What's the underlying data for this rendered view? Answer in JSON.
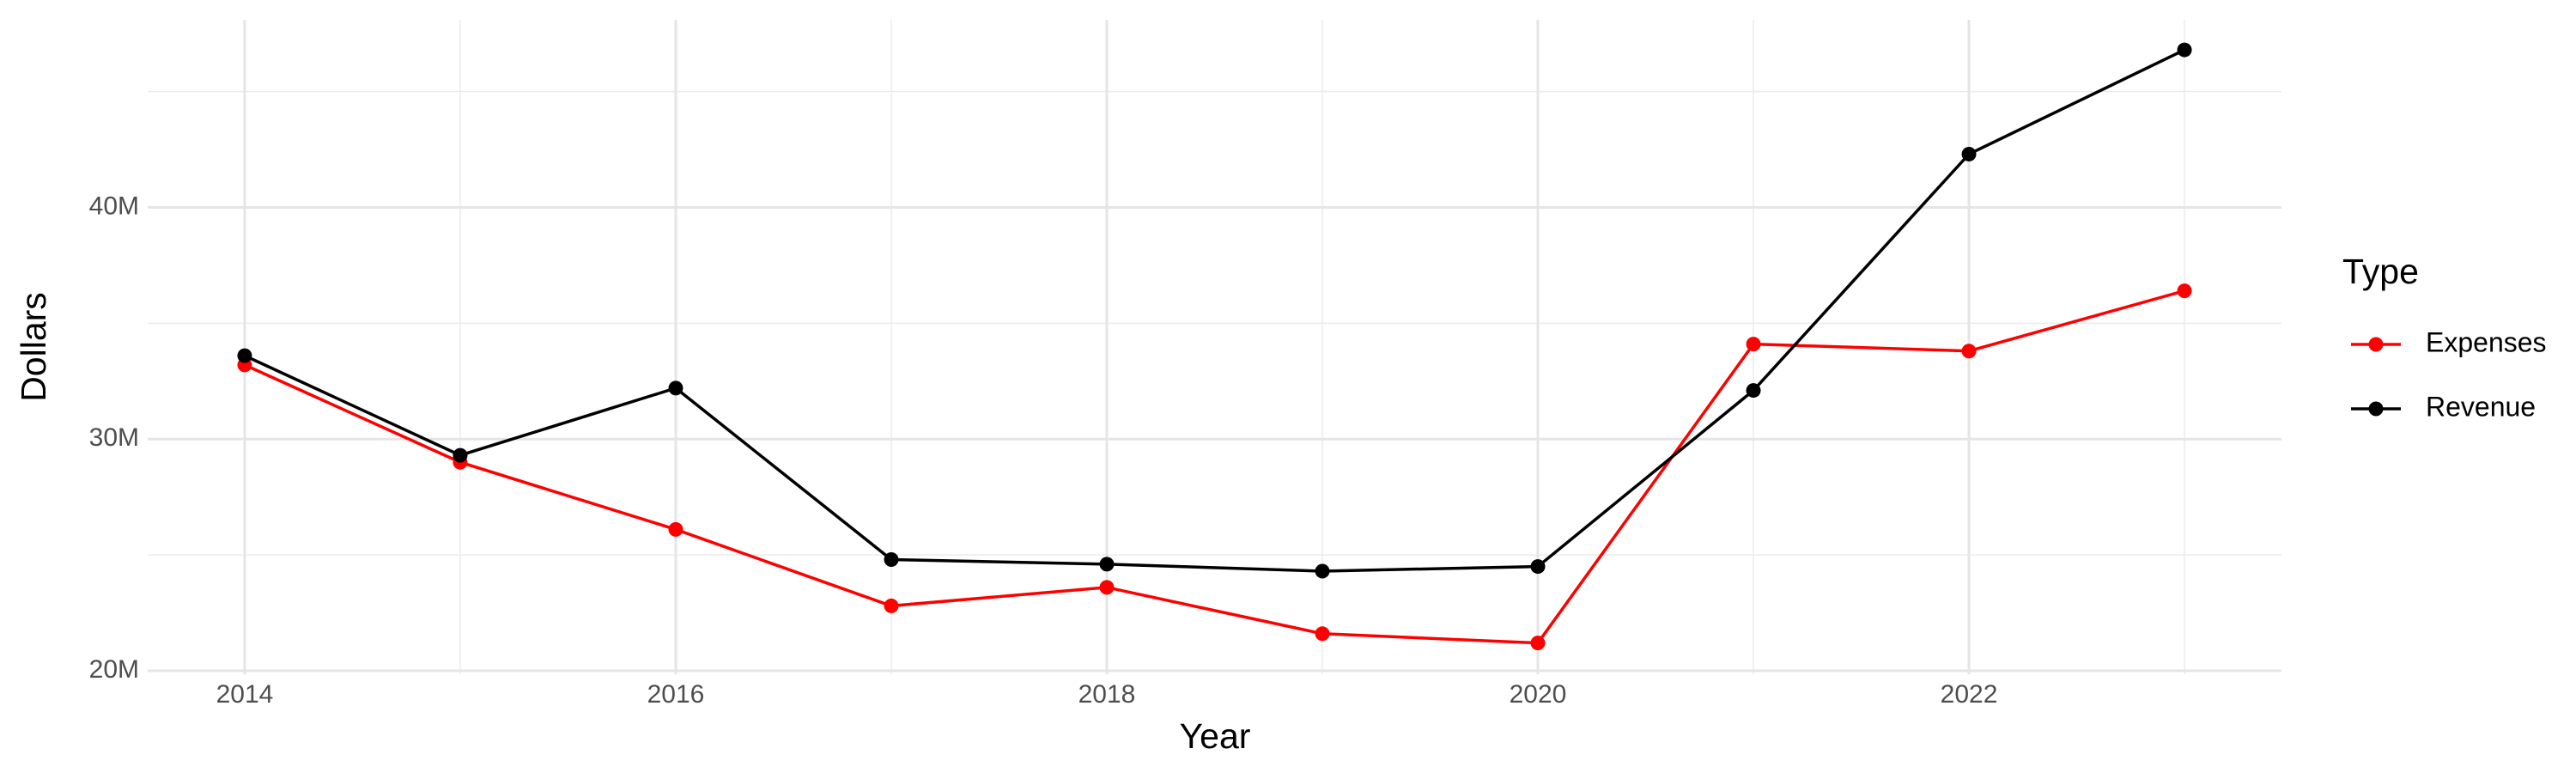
{
  "chart_data": {
    "type": "line",
    "x_label": "Year",
    "y_label": "Dollars",
    "legend_title": "Type",
    "x": [
      2014,
      2015,
      2016,
      2017,
      2018,
      2019,
      2020,
      2021,
      2022,
      2023
    ],
    "series": [
      {
        "name": "Expenses",
        "color": "#ff0000",
        "values": [
          33200000,
          29000000,
          26100000,
          22800000,
          23600000,
          21600000,
          21200000,
          34100000,
          33800000,
          36400000
        ]
      },
      {
        "name": "Revenue",
        "color": "#000000",
        "values": [
          33600000,
          29300000,
          32200000,
          24800000,
          24600000,
          24300000,
          24500000,
          32100000,
          42300000,
          46800000
        ]
      }
    ],
    "xlim": [
      2013.55,
      2023.45
    ],
    "xticks": [
      2014,
      2016,
      2018,
      2020,
      2022
    ],
    "minor_xticks": [
      2015,
      2017,
      2019,
      2021,
      2023
    ],
    "ylim": [
      19850000,
      48100000
    ],
    "yticks": [
      {
        "value": 20000000,
        "label": "20M"
      },
      {
        "value": 30000000,
        "label": "30M"
      },
      {
        "value": 40000000,
        "label": "40M"
      }
    ],
    "minor_yticks": [
      25000000,
      35000000,
      45000000
    ],
    "grid": true,
    "legend": "right"
  }
}
